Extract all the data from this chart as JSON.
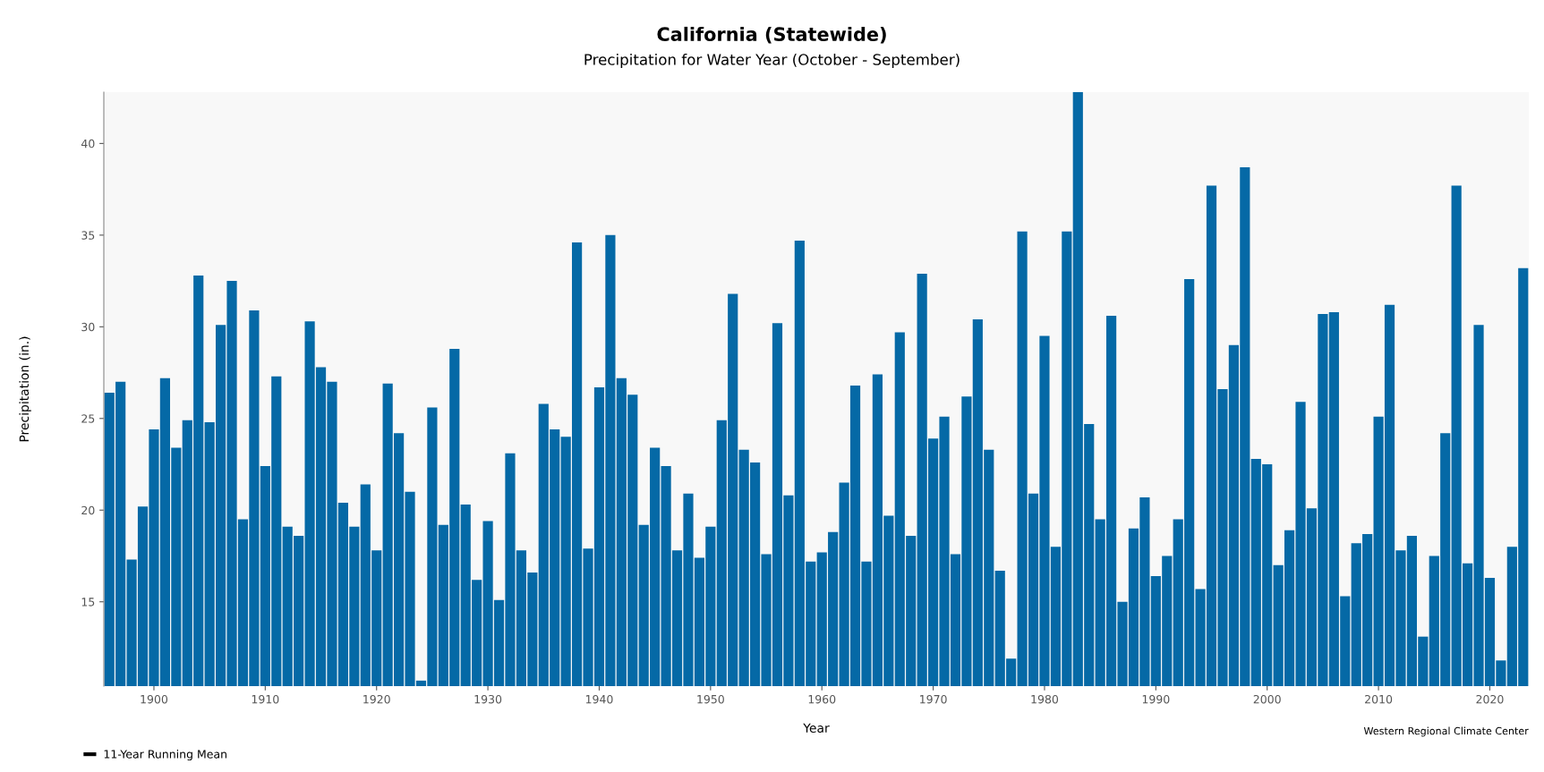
{
  "chart_data": {
    "type": "bar",
    "title": "California (Statewide)",
    "subtitle": "Precipitation for Water Year (October - September)",
    "xlabel": "Year",
    "ylabel": "Precipitation (in.)",
    "x": [
      1896,
      1897,
      1898,
      1899,
      1900,
      1901,
      1902,
      1903,
      1904,
      1905,
      1906,
      1907,
      1908,
      1909,
      1910,
      1911,
      1912,
      1913,
      1914,
      1915,
      1916,
      1917,
      1918,
      1919,
      1920,
      1921,
      1922,
      1923,
      1924,
      1925,
      1926,
      1927,
      1928,
      1929,
      1930,
      1931,
      1932,
      1933,
      1934,
      1935,
      1936,
      1937,
      1938,
      1939,
      1940,
      1941,
      1942,
      1943,
      1944,
      1945,
      1946,
      1947,
      1948,
      1949,
      1950,
      1951,
      1952,
      1953,
      1954,
      1955,
      1956,
      1957,
      1958,
      1959,
      1960,
      1961,
      1962,
      1963,
      1964,
      1965,
      1966,
      1967,
      1968,
      1969,
      1970,
      1971,
      1972,
      1973,
      1974,
      1975,
      1976,
      1977,
      1978,
      1979,
      1980,
      1981,
      1982,
      1983,
      1984,
      1985,
      1986,
      1987,
      1988,
      1989,
      1990,
      1991,
      1992,
      1993,
      1994,
      1995,
      1996,
      1997,
      1998,
      1999,
      2000,
      2001,
      2002,
      2003,
      2004,
      2005,
      2006,
      2007,
      2008,
      2009,
      2010,
      2011,
      2012,
      2013,
      2014,
      2015,
      2016,
      2017,
      2018,
      2019,
      2020,
      2021,
      2022,
      2023
    ],
    "series": [
      {
        "color": "#0569a6",
        "values": [
          26.4,
          27.0,
          17.3,
          20.2,
          24.4,
          27.2,
          23.4,
          24.9,
          32.8,
          24.8,
          30.1,
          32.5,
          19.5,
          30.9,
          22.4,
          27.3,
          19.1,
          18.6,
          30.3,
          27.8,
          27.0,
          20.4,
          19.1,
          21.4,
          17.8,
          26.9,
          24.2,
          21.0,
          10.7,
          25.6,
          19.2,
          28.8,
          20.3,
          16.2,
          19.4,
          15.1,
          23.1,
          17.8,
          16.6,
          25.8,
          24.4,
          24.0,
          34.6,
          17.9,
          26.7,
          35.0,
          27.2,
          26.3,
          19.2,
          23.4,
          22.4,
          17.8,
          20.9,
          17.4,
          19.1,
          24.9,
          31.8,
          23.3,
          22.6,
          17.6,
          30.2,
          20.8,
          34.7,
          17.2,
          17.7,
          18.8,
          21.5,
          26.8,
          17.2,
          27.4,
          19.7,
          29.7,
          18.6,
          32.9,
          23.9,
          25.1,
          17.6,
          26.2,
          30.4,
          23.3,
          16.7,
          11.9,
          35.2,
          20.9,
          29.5,
          18.0,
          35.2,
          42.8,
          24.7,
          19.5,
          30.6,
          15.0,
          19.0,
          20.7,
          16.4,
          17.5,
          19.5,
          32.6,
          15.7,
          37.7,
          26.6,
          29.0,
          38.7,
          22.8,
          22.5,
          17.0,
          18.9,
          25.9,
          20.1,
          30.7,
          30.8,
          15.3,
          18.2,
          18.7,
          25.1,
          31.2,
          17.8,
          18.6,
          13.1,
          17.5,
          24.2,
          37.7,
          17.1,
          30.1,
          16.3,
          11.8,
          18.0,
          33.2
        ]
      },
      {
        "type": "line",
        "name": "11-Year Running Mean",
        "color": "#000000",
        "values": [
          null,
          null,
          null,
          null,
          null,
          null,
          null,
          null,
          null,
          null,
          null,
          null,
          null,
          null,
          null,
          null,
          null,
          null,
          null,
          null,
          null,
          null,
          null,
          null,
          null,
          null,
          null,
          null,
          null,
          null,
          null,
          null,
          null,
          null,
          null,
          null,
          null,
          null,
          null,
          null,
          null,
          null,
          null,
          null,
          null,
          null,
          null,
          null,
          null,
          null,
          null,
          null,
          null,
          null,
          null,
          null,
          null,
          null,
          null,
          null,
          null,
          null,
          null,
          null,
          null,
          null,
          null,
          null,
          null,
          null,
          null,
          null,
          null,
          null,
          null,
          null,
          null,
          null,
          null,
          null,
          null,
          null,
          null,
          null,
          null,
          null,
          null,
          null,
          null,
          null,
          null,
          null,
          null,
          null,
          null,
          null,
          null,
          null,
          null,
          null,
          null,
          null,
          null,
          null,
          null,
          null,
          null,
          null,
          null,
          null,
          null,
          null,
          null,
          null,
          null,
          null,
          null,
          null,
          null,
          null,
          null,
          null,
          null,
          null,
          null,
          null,
          null,
          null
        ]
      }
    ],
    "xlim": [
      1895.5,
      2023.5
    ],
    "xticks": [
      1900,
      1910,
      1920,
      1930,
      1940,
      1950,
      1960,
      1970,
      1980,
      1990,
      2000,
      2010,
      2020
    ],
    "ylim": [
      10.4,
      42.8
    ],
    "yticks": [
      15,
      20,
      25,
      30,
      35,
      40
    ],
    "grid": false,
    "legend": "bottom left",
    "annotations": [
      "Western Regional Climate Center"
    ]
  }
}
